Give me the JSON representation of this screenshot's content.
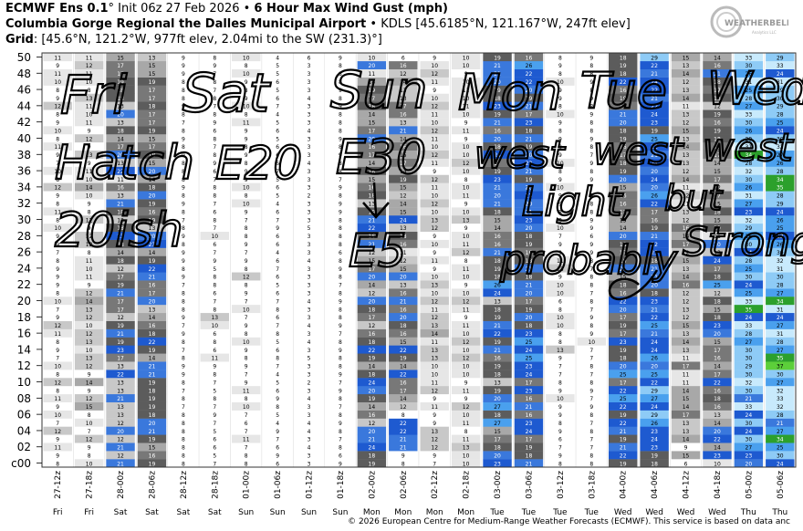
{
  "header": {
    "line1_bold": "ECMWF Ens 0.1",
    "line1_deg": "°",
    "line1_init": " Init 06z 27 Feb 2026 • ",
    "line1_title": "6 Hour Max Wind Gust (mph)",
    "line2_bold": "Columbia Gorge Regional the Dalles Municipal Airport",
    "line2_rest": " • KDLS [45.6185°N, 121.167°W, 247ft elev]",
    "line3_bold": "Grid",
    "line3_rest": ": [45.6°N, 121.2°W, 977ft elev, 2.04mi to the SW (231.3)°]"
  },
  "logo": {
    "text": "WEATHERBELL",
    "sub": "Analytics LLC"
  },
  "footer": "© 2026 European Centre for Medium-Range Weather Forecasts (ECMWF). This service is based on data anc",
  "annotations": [
    "Fri",
    "Sat",
    "Sun",
    "Mon",
    "Tue",
    "Wed",
    "Hatch",
    "E20",
    "E30",
    "west",
    "west",
    "west",
    "20ish",
    "E5",
    "Light,",
    "but",
    "probably",
    "Strong"
  ],
  "chart_data": {
    "type": "heatmap",
    "ylabel_ticks": [
      "c00",
      "02",
      "04",
      "06",
      "08",
      "10",
      "12",
      "14",
      "16",
      "18",
      "20",
      "22",
      "24",
      "26",
      "28",
      "30",
      "32",
      "34",
      "36",
      "38",
      "40",
      "42",
      "44",
      "46",
      "48",
      "50"
    ],
    "columns": [
      "27-12z",
      "27-18z",
      "28-00z",
      "28-06z",
      "28-12z",
      "28-18z",
      "01-00z",
      "01-06z",
      "01-12z",
      "01-18z",
      "02-00z",
      "02-06z",
      "02-12z",
      "02-18z",
      "03-00z",
      "03-06z",
      "03-12z",
      "03-18z",
      "04-00z",
      "04-06z",
      "04-12z",
      "04-18z",
      "05-00z",
      "05-06z"
    ],
    "days": [
      "Fri",
      "Fri",
      "Sat",
      "Sat",
      "Sat",
      "Sat",
      "Sun",
      "Sun",
      "Sun",
      "Sun",
      "Mon",
      "Mon",
      "Mon",
      "Mon",
      "Tue",
      "Tue",
      "Tue",
      "Tue",
      "Wed",
      "Wed",
      "Wed",
      "Wed",
      "Thu",
      "Thu"
    ],
    "color_scale": [
      {
        "max": 9,
        "color": "#ffffff"
      },
      {
        "max": 11,
        "color": "#e6e6e6"
      },
      {
        "max": 13,
        "color": "#c8c8c8"
      },
      {
        "max": 15,
        "color": "#a8a8a8"
      },
      {
        "max": 17,
        "color": "#787878"
      },
      {
        "max": 19,
        "color": "#5c5c5c"
      },
      {
        "max": 21,
        "color": "#3a78dc"
      },
      {
        "max": 24,
        "color": "#1e5ad0"
      },
      {
        "max": 27,
        "color": "#4aa0ee"
      },
      {
        "max": 30,
        "color": "#8ecbf6"
      },
      {
        "max": 33,
        "color": "#c8eafc"
      },
      {
        "max": 36,
        "color": "#2ca02c"
      },
      {
        "max": 99,
        "color": "#5ccf3a"
      }
    ],
    "members": [
      [
        8,
        10,
        21,
        19,
        8,
        7,
        8,
        6,
        3,
        9,
        19,
        8,
        7,
        10,
        23,
        21,
        8,
        8,
        19,
        18,
        6,
        10,
        20,
        24
      ],
      [
        9,
        8,
        12,
        16,
        8,
        5,
        8,
        9,
        3,
        6,
        18,
        9,
        9,
        10,
        20,
        18,
        9,
        8,
        22,
        19,
        15,
        23,
        23,
        30
      ],
      [
        11,
        9,
        21,
        15,
        8,
        6,
        7,
        6,
        4,
        8,
        24,
        21,
        12,
        13,
        18,
        19,
        7,
        7,
        21,
        23,
        9,
        14,
        27,
        25
      ],
      [
        9,
        12,
        12,
        19,
        8,
        6,
        11,
        7,
        3,
        7,
        21,
        21,
        12,
        11,
        17,
        17,
        6,
        7,
        19,
        24,
        14,
        22,
        30,
        34
      ],
      [
        12,
        7,
        20,
        21,
        8,
        5,
        7,
        9,
        4,
        8,
        20,
        22,
        13,
        8,
        15,
        24,
        9,
        8,
        21,
        23,
        13,
        20,
        24,
        27
      ],
      [
        7,
        10,
        12,
        20,
        8,
        7,
        6,
        4,
        4,
        9,
        12,
        22,
        9,
        11,
        27,
        23,
        8,
        7,
        22,
        26,
        13,
        14,
        30,
        21
      ],
      [
        10,
        8,
        13,
        18,
        8,
        9,
        7,
        5,
        3,
        8,
        16,
        8,
        9,
        10,
        18,
        16,
        9,
        8,
        19,
        29,
        17,
        13,
        24,
        28
      ],
      [
        9,
        15,
        13,
        19,
        7,
        7,
        10,
        8,
        3,
        7,
        14,
        12,
        11,
        12,
        27,
        21,
        9,
        9,
        22,
        24,
        14,
        16,
        33,
        32
      ],
      [
        11,
        12,
        21,
        19,
        8,
        8,
        8,
        9,
        4,
        8,
        19,
        14,
        9,
        9,
        20,
        16,
        10,
        7,
        25,
        27,
        15,
        18,
        21,
        33
      ],
      [
        8,
        9,
        13,
        18,
        7,
        5,
        11,
        6,
        3,
        9,
        20,
        17,
        12,
        11,
        19,
        23,
        9,
        9,
        22,
        29,
        14,
        16,
        30,
        32
      ],
      [
        12,
        14,
        13,
        19,
        8,
        7,
        9,
        5,
        2,
        7,
        24,
        16,
        11,
        9,
        13,
        17,
        8,
        8,
        17,
        22,
        11,
        22,
        32,
        27
      ],
      [
        8,
        9,
        22,
        21,
        9,
        8,
        7,
        4,
        3,
        9,
        18,
        22,
        10,
        10,
        18,
        24,
        7,
        7,
        25,
        25,
        11,
        17,
        30,
        30
      ],
      [
        10,
        12,
        13,
        21,
        9,
        9,
        9,
        7,
        3,
        8,
        14,
        14,
        10,
        10,
        19,
        23,
        7,
        8,
        20,
        20,
        17,
        14,
        29,
        37
      ],
      [
        7,
        13,
        17,
        14,
        8,
        11,
        8,
        8,
        5,
        8,
        19,
        19,
        13,
        12,
        16,
        25,
        9,
        7,
        18,
        26,
        11,
        16,
        30,
        35
      ],
      [
        9,
        10,
        23,
        19,
        7,
        6,
        9,
        6,
        3,
        9,
        22,
        22,
        13,
        10,
        21,
        24,
        13,
        7,
        19,
        24,
        13,
        17,
        30,
        27
      ],
      [
        8,
        13,
        19,
        22,
        8,
        8,
        10,
        5,
        4,
        8,
        18,
        15,
        11,
        12,
        19,
        25,
        8,
        10,
        23,
        24,
        14,
        15,
        27,
        28
      ],
      [
        11,
        12,
        21,
        18,
        9,
        6,
        8,
        8,
        3,
        7,
        16,
        16,
        14,
        10,
        22,
        23,
        8,
        9,
        17,
        21,
        13,
        20,
        28,
        31
      ],
      [
        12,
        10,
        19,
        16,
        7,
        10,
        9,
        7,
        4,
        9,
        12,
        18,
        13,
        11,
        21,
        18,
        10,
        8,
        19,
        25,
        15,
        23,
        33,
        27
      ],
      [
        9,
        12,
        12,
        14,
        9,
        13,
        7,
        6,
        3,
        8,
        17,
        20,
        12,
        9,
        19,
        20,
        10,
        9,
        17,
        22,
        12,
        18,
        24,
        24
      ],
      [
        7,
        13,
        17,
        13,
        8,
        8,
        10,
        8,
        3,
        8,
        18,
        16,
        11,
        11,
        18,
        19,
        8,
        7,
        20,
        21,
        13,
        15,
        35,
        31
      ],
      [
        10,
        14,
        17,
        20,
        8,
        7,
        7,
        7,
        4,
        9,
        20,
        21,
        12,
        12,
        13,
        17,
        6,
        8,
        22,
        23,
        12,
        18,
        33,
        34
      ],
      [
        8,
        12,
        21,
        17,
        8,
        6,
        9,
        6,
        3,
        8,
        12,
        16,
        10,
        10,
        24,
        20,
        10,
        7,
        16,
        18,
        12,
        12,
        25,
        27
      ],
      [
        9,
        9,
        19,
        16,
        7,
        8,
        8,
        5,
        3,
        7,
        14,
        13,
        13,
        9,
        26,
        21,
        10,
        8,
        18,
        20,
        16,
        25,
        24,
        28
      ],
      [
        9,
        11,
        17,
        21,
        9,
        8,
        12,
        6,
        3,
        8,
        20,
        20,
        10,
        10,
        18,
        18,
        9,
        8,
        15,
        21,
        14,
        18,
        30,
        30
      ],
      [
        9,
        10,
        12,
        22,
        8,
        5,
        8,
        7,
        3,
        9,
        17,
        15,
        9,
        11,
        19,
        21,
        13,
        7,
        21,
        21,
        13,
        17,
        25,
        31
      ],
      [
        8,
        11,
        18,
        19,
        9,
        9,
        9,
        6,
        4,
        8,
        15,
        12,
        11,
        8,
        18,
        18,
        11,
        8,
        19,
        18,
        15,
        24,
        28,
        32
      ],
      [
        7,
        8,
        14,
        14,
        9,
        7,
        7,
        4,
        3,
        6,
        12,
        11,
        9,
        12,
        21,
        16,
        9,
        9,
        17,
        23,
        12,
        13,
        24,
        30
      ],
      [
        9,
        12,
        18,
        23,
        8,
        6,
        9,
        6,
        3,
        8,
        21,
        16,
        10,
        11,
        16,
        19,
        9,
        9,
        18,
        22,
        17,
        20,
        30,
        26
      ],
      [
        9,
        12,
        23,
        20,
        9,
        10,
        8,
        6,
        3,
        8,
        16,
        18,
        9,
        10,
        16,
        18,
        7,
        6,
        20,
        21,
        14,
        11,
        26,
        23
      ],
      [
        10,
        9,
        18,
        13,
        8,
        7,
        8,
        9,
        5,
        8,
        22,
        13,
        12,
        9,
        14,
        20,
        10,
        9,
        14,
        19,
        16,
        19,
        29,
        25
      ],
      [
        8,
        12,
        12,
        19,
        7,
        8,
        7,
        7,
        3,
        8,
        21,
        24,
        13,
        13,
        15,
        23,
        8,
        9,
        15,
        16,
        12,
        15,
        32,
        26
      ],
      [
        11,
        8,
        18,
        16,
        8,
        6,
        9,
        6,
        3,
        9,
        19,
        15,
        10,
        10,
        18,
        21,
        8,
        8,
        17,
        17,
        13,
        18,
        23,
        24
      ],
      [
        8,
        9,
        21,
        19,
        9,
        7,
        10,
        4,
        3,
        9,
        13,
        14,
        12,
        9,
        21,
        20,
        9,
        8,
        16,
        22,
        11,
        15,
        27,
        29
      ],
      [
        9,
        10,
        13,
        20,
        8,
        8,
        8,
        5,
        2,
        8,
        18,
        12,
        10,
        11,
        20,
        23,
        9,
        8,
        16,
        26,
        12,
        17,
        31,
        28
      ],
      [
        12,
        14,
        16,
        18,
        9,
        8,
        10,
        6,
        3,
        9,
        16,
        15,
        11,
        10,
        21,
        20,
        10,
        7,
        15,
        20,
        11,
        12,
        26,
        35
      ],
      [
        8,
        10,
        11,
        14,
        8,
        7,
        9,
        5,
        3,
        7,
        15,
        19,
        12,
        8,
        23,
        19,
        9,
        9,
        20,
        24,
        14,
        17,
        30,
        34
      ],
      [
        10,
        11,
        22,
        20,
        8,
        6,
        9,
        7,
        3,
        8,
        18,
        14,
        9,
        10,
        19,
        21,
        8,
        8,
        19,
        20,
        12,
        15,
        32,
        28
      ],
      [
        7,
        9,
        13,
        15,
        8,
        9,
        8,
        6,
        4,
        8,
        14,
        17,
        11,
        12,
        17,
        22,
        10,
        9,
        18,
        24,
        13,
        14,
        28,
        26
      ],
      [
        9,
        13,
        20,
        18,
        9,
        8,
        9,
        6,
        3,
        9,
        17,
        15,
        12,
        10,
        24,
        20,
        9,
        7,
        17,
        21,
        13,
        17,
        34,
        27
      ],
      [
        11,
        9,
        17,
        17,
        8,
        7,
        8,
        6,
        3,
        8,
        16,
        16,
        10,
        10,
        18,
        19,
        8,
        8,
        16,
        22,
        14,
        16,
        31,
        32
      ],
      [
        8,
        12,
        14,
        15,
        9,
        8,
        9,
        5,
        3,
        9,
        20,
        14,
        11,
        9,
        20,
        21,
        9,
        9,
        19,
        25,
        13,
        18,
        29,
        30
      ],
      [
        10,
        9,
        18,
        19,
        8,
        6,
        9,
        6,
        4,
        8,
        17,
        21,
        12,
        11,
        16,
        18,
        8,
        8,
        18,
        19,
        15,
        19,
        26,
        24
      ],
      [
        9,
        11,
        13,
        17,
        7,
        9,
        11,
        5,
        3,
        8,
        15,
        13,
        10,
        9,
        21,
        23,
        9,
        8,
        20,
        23,
        12,
        16,
        30,
        25
      ],
      [
        8,
        10,
        20,
        17,
        8,
        8,
        8,
        4,
        3,
        8,
        14,
        16,
        11,
        10,
        19,
        17,
        10,
        9,
        21,
        24,
        13,
        19,
        33,
        28
      ],
      [
        12,
        11,
        13,
        18,
        9,
        7,
        10,
        7,
        3,
        9,
        18,
        17,
        12,
        11,
        23,
        21,
        8,
        8,
        17,
        22,
        11,
        12,
        27,
        29
      ],
      [
        9,
        13,
        18,
        17,
        8,
        8,
        9,
        6,
        4,
        8,
        17,
        13,
        10,
        10,
        18,
        19,
        9,
        9,
        19,
        21,
        14,
        18,
        28,
        30
      ],
      [
        8,
        8,
        18,
        17,
        8,
        7,
        8,
        5,
        3,
        9,
        19,
        13,
        9,
        11,
        19,
        20,
        9,
        8,
        16,
        22,
        13,
        17,
        25,
        29
      ],
      [
        10,
        10,
        19,
        19,
        8,
        8,
        9,
        6,
        3,
        8,
        14,
        14,
        11,
        10,
        20,
        22,
        10,
        9,
        22,
        24,
        12,
        18,
        31,
        31
      ],
      [
        11,
        11,
        17,
        15,
        9,
        7,
        10,
        5,
        3,
        8,
        11,
        12,
        12,
        9,
        21,
        22,
        8,
        8,
        18,
        21,
        14,
        21,
        26,
        24
      ],
      [
        9,
        12,
        17,
        15,
        9,
        9,
        8,
        5,
        3,
        8,
        20,
        16,
        10,
        10,
        21,
        26,
        9,
        8,
        19,
        22,
        13,
        16,
        30,
        33
      ],
      [
        11,
        11,
        15,
        13,
        9,
        8,
        10,
        4,
        6,
        9,
        10,
        6,
        9,
        10,
        19,
        16,
        8,
        9,
        18,
        29,
        15,
        14,
        33,
        29
      ]
    ]
  }
}
